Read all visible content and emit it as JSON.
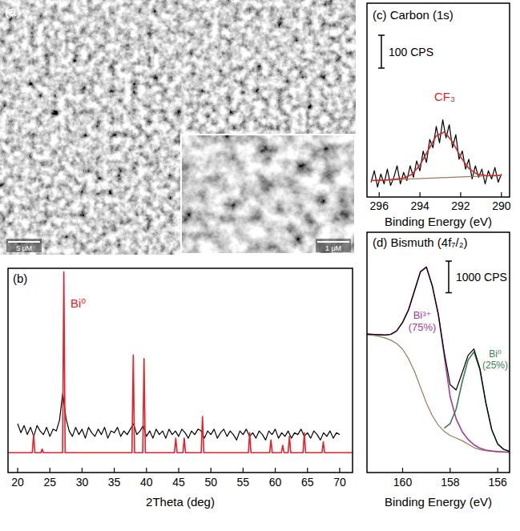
{
  "image": {
    "label": "(a)",
    "scale_bars": [
      "5 μM",
      "1 μM"
    ]
  },
  "chart_data": [
    {
      "type": "line",
      "title": "(b)",
      "x_label": "2Theta (deg)",
      "xlim": [
        18.5,
        72
      ],
      "xticks": [
        20,
        25,
        30,
        35,
        40,
        45,
        50,
        55,
        60,
        65,
        70
      ],
      "ylim": [
        -11,
        102
      ],
      "tick_labels": "x",
      "series": [
        {
          "color": "#000000",
          "x": [
            20,
            20.5,
            21,
            21.5,
            22,
            22.5,
            23,
            23.5,
            24,
            24.5,
            25,
            25.5,
            26,
            26.5,
            27,
            27.5,
            28,
            28.5,
            29,
            29.5,
            30,
            30.5,
            31,
            31.5,
            32,
            32.5,
            33,
            33.5,
            34,
            34.5,
            35,
            35.5,
            36,
            36.5,
            37,
            37.5,
            38,
            38.5,
            39,
            39.5,
            40,
            40.5,
            41,
            41.5,
            42,
            42.5,
            43,
            43.5,
            44,
            44.5,
            45,
            45.5,
            46,
            46.5,
            47,
            47.5,
            48,
            48.5,
            49,
            49.5,
            50,
            50.5,
            51,
            51.5,
            52,
            52.5,
            53,
            53.5,
            54,
            54.5,
            55,
            55.5,
            56,
            56.5,
            57,
            57.5,
            58,
            58.5,
            59,
            59.5,
            60,
            60.5,
            61,
            61.5,
            62,
            62.5,
            63,
            63.5,
            64,
            64.5,
            65,
            65.5,
            66,
            66.5,
            67,
            67.5,
            68,
            68.5,
            69,
            69.5,
            70
          ],
          "values": [
            16,
            11,
            15,
            10,
            14,
            9,
            15,
            12,
            10,
            14,
            9,
            13,
            12,
            18,
            33,
            19,
            12,
            9,
            14,
            10,
            13,
            8,
            14,
            11,
            9,
            13,
            10,
            14,
            8,
            12,
            11,
            14,
            9,
            12,
            10,
            13,
            16,
            10,
            12,
            15,
            9,
            12,
            8,
            13,
            10,
            12,
            8,
            13,
            10,
            12,
            9,
            13,
            11,
            8,
            12,
            10,
            13,
            12,
            8,
            12,
            10,
            13,
            8,
            11,
            13,
            9,
            12,
            10,
            7,
            12,
            10,
            13,
            9,
            11,
            8,
            12,
            10,
            7,
            12,
            10,
            13,
            8,
            11,
            9,
            12,
            8,
            11,
            10,
            13,
            9,
            11,
            8,
            12,
            10,
            7,
            11,
            9,
            12,
            8,
            11,
            10
          ]
        },
        {
          "name": "Bi⁰",
          "color": "#e8202a",
          "x": [
            18.5,
            22.27,
            22.47,
            22.67,
            23.6,
            23.8,
            24,
            26.97,
            27.17,
            27.37,
            37.75,
            37.95,
            38.15,
            39.42,
            39.62,
            39.82,
            44.35,
            44.55,
            44.75,
            45.66,
            45.86,
            46.06,
            48.5,
            48.7,
            48.9,
            55.83,
            56.03,
            56.23,
            59.13,
            59.33,
            59.53,
            60.96,
            61.16,
            61.36,
            62,
            62.2,
            62.4,
            64.31,
            64.51,
            64.71,
            67.26,
            67.46,
            67.66,
            72
          ],
          "values": [
            0,
            0,
            10,
            0,
            0,
            2,
            0,
            0,
            100,
            0,
            0,
            54,
            0,
            0,
            52,
            0,
            0,
            8,
            0,
            0,
            8,
            0,
            0,
            20,
            0,
            0,
            11,
            0,
            0,
            7,
            0,
            0,
            4,
            0,
            0,
            9,
            0,
            0,
            11,
            0,
            0,
            6,
            0,
            0
          ]
        }
      ]
    },
    {
      "type": "line",
      "title": "(c) Carbon (1s)",
      "x_label": "Binding Energy (eV)",
      "xlim": [
        296.6,
        289.6
      ],
      "xticks": [
        296,
        294,
        292,
        290
      ],
      "ylim": [
        0,
        590
      ],
      "tick_labels": "x",
      "scale_bar": {
        "value": 100,
        "label": "100 CPS"
      },
      "series": [
        {
          "color": "#000000",
          "x": [
            296.4,
            296.24,
            296.08,
            295.92,
            295.76,
            295.6,
            295.44,
            295.28,
            295.12,
            294.96,
            294.8,
            294.64,
            294.48,
            294.32,
            294.16,
            294,
            293.84,
            293.68,
            293.52,
            293.36,
            293.2,
            293.04,
            292.88,
            292.72,
            292.56,
            292.4,
            292.24,
            292.08,
            291.92,
            291.76,
            291.6,
            291.44,
            291.28,
            291.12,
            290.96,
            290.8,
            290.64,
            290.48,
            290.32,
            290.16,
            290
          ],
          "values": [
            45,
            80,
            30,
            70,
            40,
            85,
            35,
            60,
            95,
            40,
            75,
            50,
            95,
            60,
            110,
            80,
            140,
            105,
            175,
            150,
            215,
            165,
            235,
            180,
            220,
            150,
            190,
            115,
            140,
            85,
            115,
            55,
            95,
            60,
            85,
            40,
            80,
            55,
            90,
            45,
            70
          ]
        },
        {
          "color": "#a0785a",
          "x": [
            296.4,
            290
          ],
          "values": [
            50,
            66
          ]
        },
        {
          "name": "CF₃",
          "color": "#d42a2a",
          "x": [
            296.4,
            296,
            295.6,
            295.2,
            294.8,
            294.4,
            294,
            293.6,
            293.2,
            292.8,
            292.4,
            292,
            291.6,
            291.2,
            290.8,
            290.4,
            290
          ],
          "values": [
            50,
            51,
            52,
            54,
            58,
            69,
            97,
            142,
            186,
            198,
            168,
            122,
            87,
            70,
            66,
            65,
            66
          ]
        }
      ]
    },
    {
      "type": "line",
      "title": "(d) Bismuth (4f₇/₂)",
      "x_label": "Binding Energy (eV)",
      "xlim": [
        161.5,
        155.5
      ],
      "xticks": [
        160,
        158,
        156
      ],
      "ylim": [
        0,
        7600
      ],
      "tick_labels": "x",
      "scale_bar": {
        "value": 1000,
        "label": "1000 CPS"
      },
      "annotations": [
        "(75%)",
        "(25%)"
      ],
      "series": [
        {
          "color": "#a0785a",
          "x": [
            161.5,
            161.25,
            161,
            160.75,
            160.5,
            160.25,
            160,
            159.75,
            159.5,
            159.25,
            159,
            158.75,
            158.5,
            158.25,
            158,
            157.75,
            157.5,
            157.25,
            157,
            156.75,
            156.5,
            156.25,
            156,
            155.75,
            155.5
          ],
          "values": [
            4360,
            4340,
            4310,
            4260,
            4190,
            4080,
            3900,
            3600,
            3200,
            2700,
            2200,
            1800,
            1500,
            1300,
            1170,
            1090,
            1010,
            900,
            790,
            725,
            690,
            672,
            660,
            650,
            640
          ]
        },
        {
          "name": "Bi³⁺",
          "color": "#a23b9c",
          "x": [
            161.5,
            161.25,
            161,
            160.75,
            160.5,
            160.25,
            160,
            159.75,
            159.5,
            159.25,
            159,
            158.75,
            158.5,
            158.25,
            158,
            157.75,
            157.5,
            157.25,
            157,
            156.75,
            156.5,
            156.25,
            156,
            155.75,
            155.5
          ],
          "values": [
            4380,
            4370,
            4360,
            4350,
            4370,
            4480,
            4750,
            5150,
            5750,
            6350,
            6500,
            5900,
            5000,
            3700,
            2400,
            1700,
            1300,
            1050,
            880,
            770,
            710,
            680,
            662,
            651,
            641
          ]
        },
        {
          "name": "Bi⁰",
          "color": "#3d7d52",
          "x": [
            161.5,
            161.25,
            161,
            160.75,
            160.5,
            160.25,
            160,
            159.75,
            159.5,
            159.25,
            159,
            158.75,
            158.5,
            158.25,
            158,
            157.75,
            157.5,
            157.25,
            157,
            156.75,
            156.5,
            156.25,
            156,
            155.75,
            155.5
          ],
          "values": [
            null,
            null,
            null,
            null,
            null,
            null,
            null,
            null,
            null,
            null,
            null,
            null,
            null,
            1400,
            1550,
            2000,
            2850,
            3550,
            3820,
            3250,
            2200,
            1350,
            900,
            735,
            668
          ]
        },
        {
          "color": "#000000",
          "x": [
            161.5,
            161.25,
            161,
            160.75,
            160.5,
            160.25,
            160,
            159.75,
            159.5,
            159.25,
            159,
            158.75,
            158.5,
            158.25,
            158,
            157.75,
            157.5,
            157.25,
            157,
            156.75,
            156.5,
            156.25,
            156,
            155.75,
            155.5
          ],
          "values": [
            4380,
            4370,
            4360,
            4350,
            4370,
            4480,
            4750,
            5150,
            5750,
            6350,
            6500,
            5900,
            5020,
            3800,
            2780,
            2610,
            3140,
            3700,
            3910,
            3295,
            2220,
            1358,
            902,
            736,
            669
          ]
        }
      ]
    }
  ]
}
